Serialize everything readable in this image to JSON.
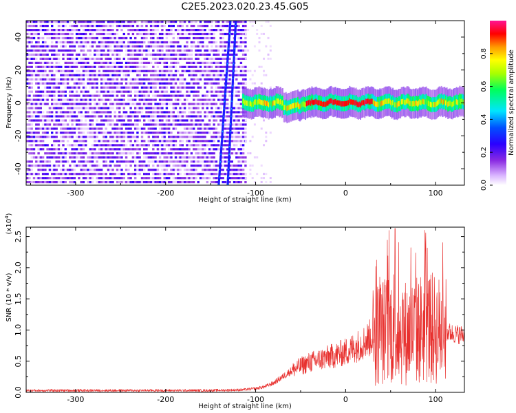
{
  "title": "C2E5.2023.020.23.45.G05",
  "colors": {
    "colormap": [
      "#ffffff",
      "#e6c9ff",
      "#8a2be2",
      "#3b00ff",
      "#0000ff",
      "#00e5ff",
      "#00ff5a",
      "#aaff00",
      "#ffff00",
      "#ff9900",
      "#ff0000",
      "#ff1493"
    ],
    "snr_line": "#e8312f",
    "axis": "#000000"
  },
  "chart_data": [
    {
      "type": "heatmap",
      "xlabel": "Height of straight line (km)",
      "ylabel": "Frequency (Hz)",
      "xlim": [
        -355,
        132
      ],
      "ylim": [
        -50,
        50
      ],
      "xticks": [
        -300,
        -200,
        -100,
        0,
        100
      ],
      "yticks": [
        -40,
        -20,
        0,
        20,
        40
      ],
      "xtick_labels": [
        "-300",
        "-200",
        "-100",
        "0",
        "100"
      ],
      "ytick_labels": [
        "-40",
        "-20",
        "0",
        "20",
        "40"
      ],
      "colorbar": {
        "label": "Normalized spectral amplitude",
        "range": [
          0,
          1
        ],
        "ticks": [
          0.0,
          0.2,
          0.4,
          0.6,
          0.8
        ],
        "tick_labels": [
          "0.0",
          "0.2",
          "0.4",
          "0.6",
          "0.8"
        ]
      },
      "regions": [
        {
          "name": "noise",
          "x_range": [
            -355,
            -112
          ],
          "y_range": [
            -50,
            50
          ],
          "amplitude": 0.15
        },
        {
          "name": "diagonal_streak_1",
          "x": [
            -141,
            -128
          ],
          "y": [
            -50,
            50
          ],
          "amplitude": 0.3
        },
        {
          "name": "diagonal_streak_2",
          "x": [
            -131,
            -122
          ],
          "y": [
            -50,
            50
          ],
          "amplitude": 0.3
        },
        {
          "name": "sparse_noise",
          "x_range": [
            -112,
            -82
          ],
          "y_range": [
            -50,
            50
          ],
          "amplitude": 0.05
        },
        {
          "name": "carrier",
          "x_range": [
            -115,
            132
          ],
          "y_center": 0,
          "amplitude": 0.85
        }
      ]
    },
    {
      "type": "line",
      "xlabel": "Height of straight line (km)",
      "ylabel": "SNR (10 * v/v)",
      "scale_label": "(x10",
      "scale_exp": "4",
      "scale_close": ")",
      "xlim": [
        -355,
        132
      ],
      "ylim": [
        0,
        26500
      ],
      "xticks": [
        -300,
        -200,
        -100,
        0,
        100
      ],
      "xtick_labels": [
        "-300",
        "-200",
        "-100",
        "0",
        "100"
      ],
      "yticks": [
        0,
        5000,
        10000,
        15000,
        20000,
        25000
      ],
      "ytick_labels": [
        "0.0",
        "0.5",
        "1.0",
        "1.5",
        "2.0",
        "2.5"
      ],
      "series": [
        {
          "x": [
            -355,
            -300,
            -250,
            -200,
            -150,
            -115,
            -100,
            -90,
            -80,
            -70,
            -60,
            -50,
            -40,
            -30,
            -20,
            -10,
            0,
            10,
            20,
            30,
            40,
            50,
            60,
            70,
            80,
            90,
            100,
            110,
            115,
            120,
            132
          ],
          "y": [
            300,
            300,
            300,
            300,
            300,
            400,
            600,
            900,
            1500,
            2500,
            3500,
            4200,
            4800,
            5200,
            5600,
            6000,
            6500,
            7200,
            8000,
            9000,
            9800,
            10200,
            9800,
            9500,
            10000,
            10500,
            10000,
            9800,
            9600,
            9400,
            9200
          ],
          "peak_x": 55,
          "peak_y": 26300
        }
      ]
    }
  ]
}
